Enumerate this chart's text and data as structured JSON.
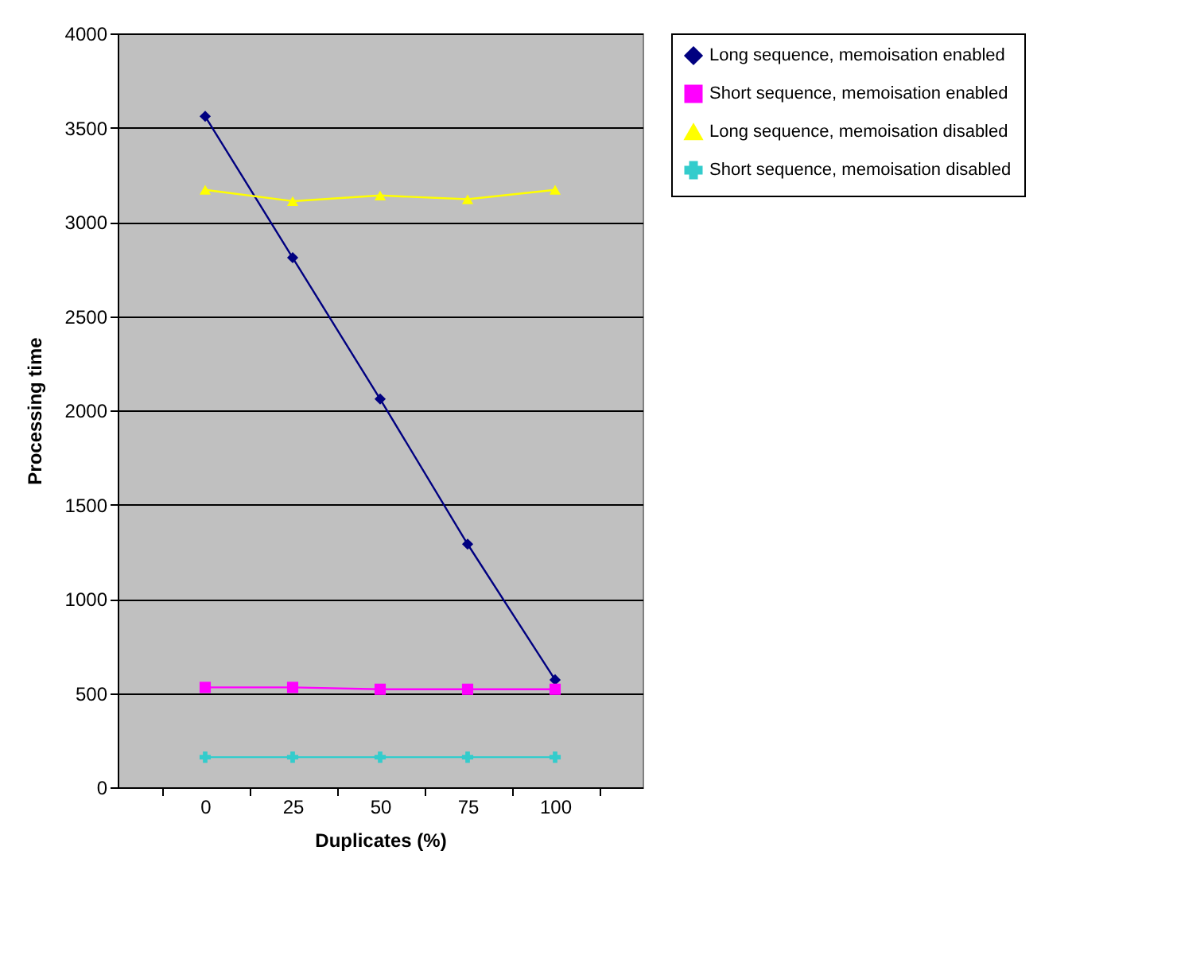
{
  "chart_data": {
    "type": "line",
    "xlabel": "Duplicates (%)",
    "ylabel": "Processing time",
    "categories": [
      "0",
      "25",
      "50",
      "75",
      "100"
    ],
    "series": [
      {
        "name": "Long sequence, memoisation enabled",
        "color": "#000080",
        "marker": "diamond",
        "values": [
          3560,
          2810,
          2060,
          1290,
          570
        ]
      },
      {
        "name": "Short sequence, memoisation enabled",
        "color": "#ff00ff",
        "marker": "square",
        "values": [
          530,
          530,
          520,
          520,
          520
        ]
      },
      {
        "name": "Long sequence, memoisation disabled",
        "color": "#ffff00",
        "marker": "triangle",
        "values": [
          3170,
          3110,
          3140,
          3120,
          3170
        ]
      },
      {
        "name": "Short sequence, memoisation disabled",
        "color": "#33cccc",
        "marker": "cross",
        "values": [
          160,
          160,
          160,
          160,
          160
        ]
      }
    ],
    "ylim": [
      0,
      4000
    ],
    "yticks": [
      0,
      500,
      1000,
      1500,
      2000,
      2500,
      3000,
      3500,
      4000
    ],
    "grid": "y",
    "legend": "right"
  }
}
